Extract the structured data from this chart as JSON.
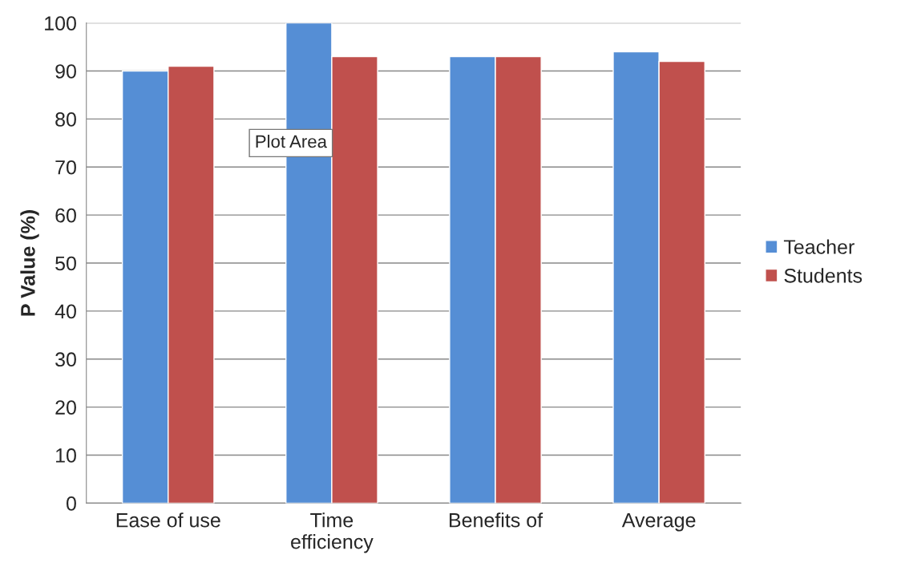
{
  "chart_data": {
    "type": "bar",
    "ylabel": "P Value (%)",
    "categories": [
      "Ease of use",
      "Time\nefficiency",
      "Benefits of",
      "Average"
    ],
    "series": [
      {
        "name": "Teacher",
        "color": "#558ed5",
        "values": [
          90,
          100,
          93,
          94
        ]
      },
      {
        "name": "Students",
        "color": "#c0504d",
        "values": [
          91,
          93,
          93,
          92
        ]
      }
    ],
    "ylim": [
      0,
      100
    ],
    "yticks": [
      0,
      10,
      20,
      30,
      40,
      50,
      60,
      70,
      80,
      90,
      100
    ],
    "grid": "y",
    "legend": "right",
    "annotations": [
      {
        "text": "Plot Area",
        "x": "Time\nefficiency",
        "y": 75
      }
    ]
  }
}
